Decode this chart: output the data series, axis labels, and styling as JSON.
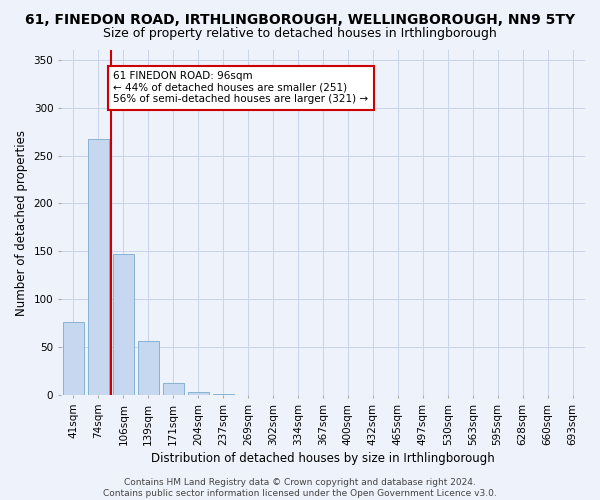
{
  "title": "61, FINEDON ROAD, IRTHLINGBOROUGH, WELLINGBOROUGH, NN9 5TY",
  "subtitle": "Size of property relative to detached houses in Irthlingborough",
  "xlabel": "Distribution of detached houses by size in Irthlingborough",
  "ylabel": "Number of detached properties",
  "categories": [
    "41sqm",
    "74sqm",
    "106sqm",
    "139sqm",
    "171sqm",
    "204sqm",
    "237sqm",
    "269sqm",
    "302sqm",
    "334sqm",
    "367sqm",
    "400sqm",
    "432sqm",
    "465sqm",
    "497sqm",
    "530sqm",
    "563sqm",
    "595sqm",
    "628sqm",
    "660sqm",
    "693sqm"
  ],
  "values": [
    76,
    267,
    147,
    57,
    13,
    3,
    1,
    0,
    0,
    0,
    0,
    0,
    0,
    0,
    0,
    0,
    0,
    0,
    0,
    0,
    0
  ],
  "bar_color": "#c5d8f0",
  "bar_edge_color": "#7aaad0",
  "highlight_bar_index": 2,
  "highlight_edge_color": "#cc0000",
  "annotation_text": "61 FINEDON ROAD: 96sqm\n← 44% of detached houses are smaller (251)\n56% of semi-detached houses are larger (321) →",
  "annotation_box_color": "white",
  "annotation_box_edge_color": "#cc0000",
  "ylim": [
    0,
    360
  ],
  "yticks": [
    0,
    50,
    100,
    150,
    200,
    250,
    300,
    350
  ],
  "grid_color": "#c8d4e8",
  "bg_color": "#eef2fa",
  "footer": "Contains HM Land Registry data © Crown copyright and database right 2024.\nContains public sector information licensed under the Open Government Licence v3.0.",
  "title_fontsize": 10,
  "subtitle_fontsize": 9,
  "xlabel_fontsize": 8.5,
  "ylabel_fontsize": 8.5,
  "tick_fontsize": 7.5,
  "footer_fontsize": 6.5
}
